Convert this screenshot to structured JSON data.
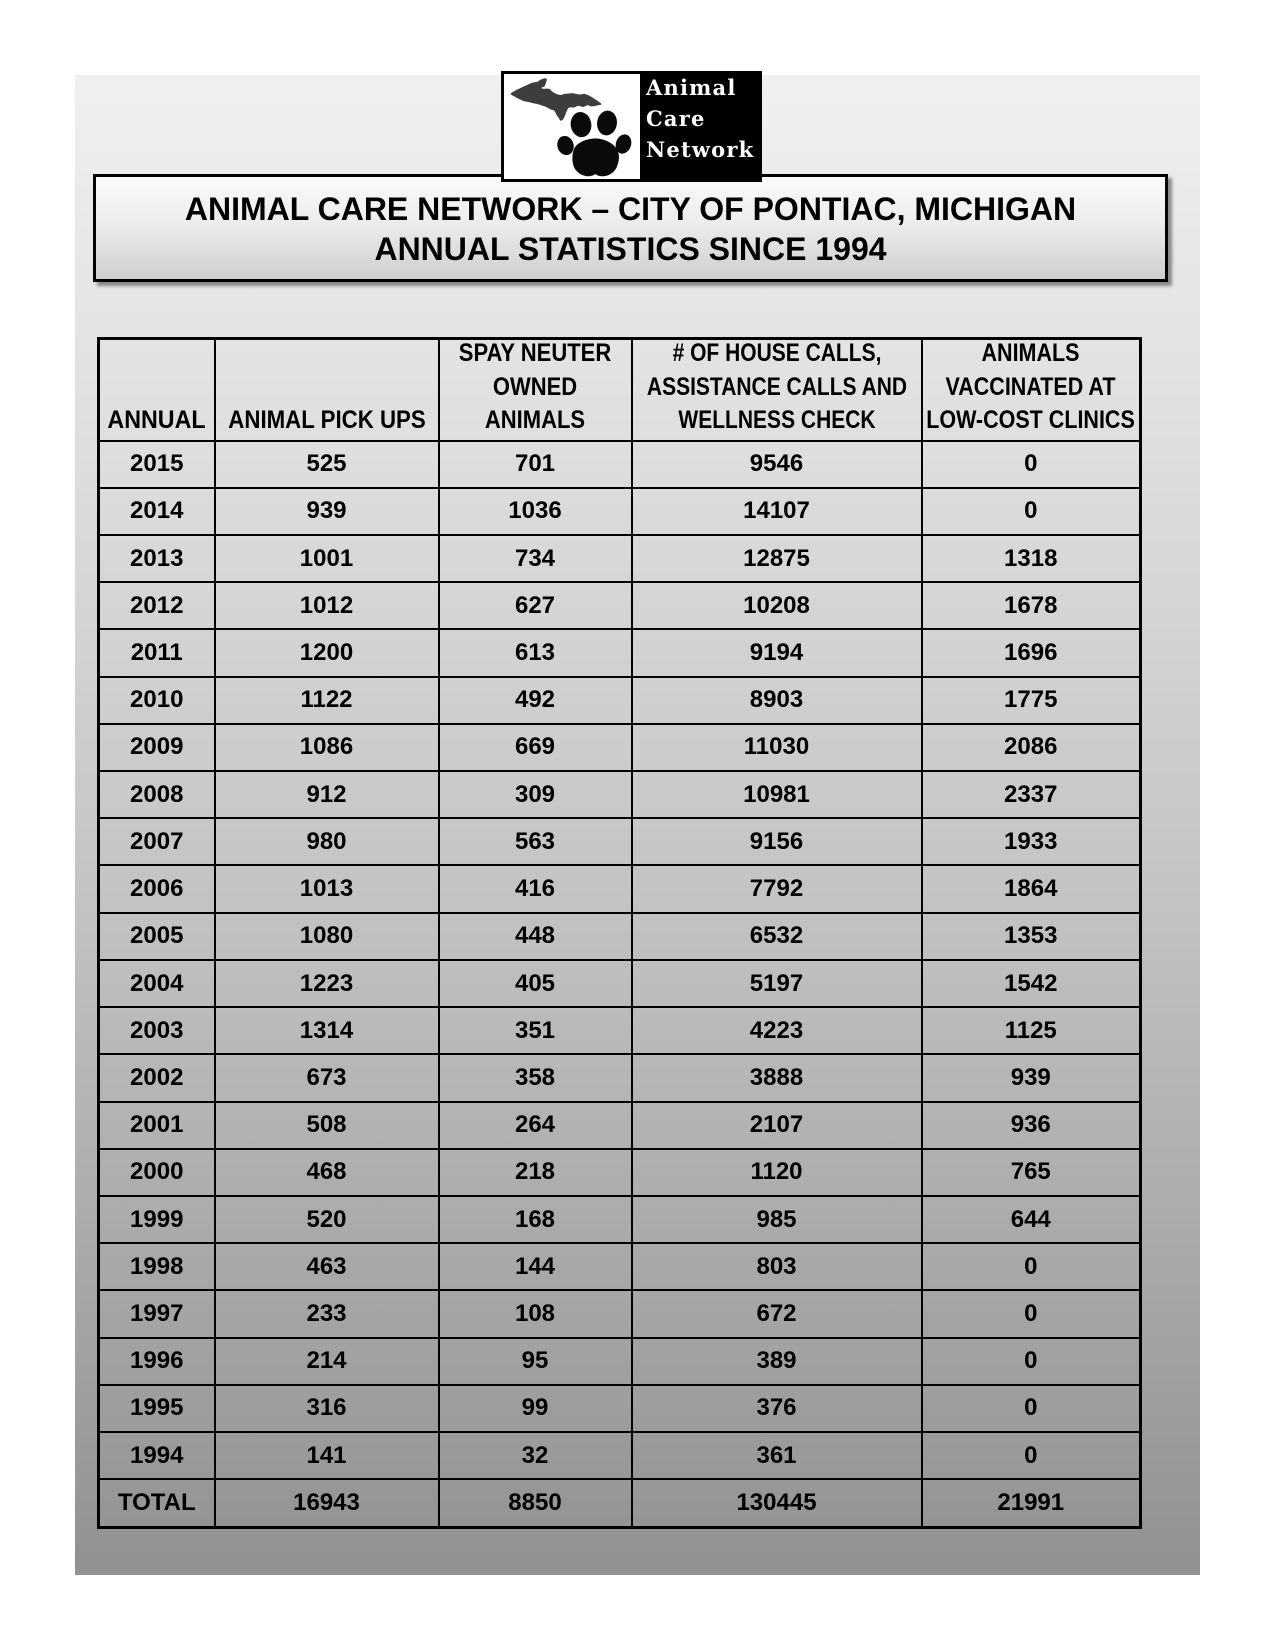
{
  "logo": {
    "art": {
      "upper_peninsula_icon": "michigan-upper-peninsula-silhouette",
      "paw_icon": "paw-print",
      "silhouette_color": "#3d3d3d",
      "paw_color": "#0a0a0a"
    },
    "text": "Animal\nCare\nNetwork"
  },
  "title": {
    "line1": "ANIMAL CARE NETWORK – CITY OF PONTIAC, MICHIGAN",
    "line2": "ANNUAL STATISTICS SINCE 1994"
  },
  "table": {
    "headers": [
      "ANNUAL",
      "ANIMAL PICK UPS",
      "SPAY NEUTER\nOWNED\nANIMALS",
      "# OF HOUSE CALLS,\nASSISTANCE CALLS AND\nWELLNESS CHECK",
      "ANIMALS\nVACCINATED AT\nLOW-COST CLINICS"
    ],
    "rows": [
      [
        "2015",
        "525",
        "701",
        "9546",
        "0"
      ],
      [
        "2014",
        "939",
        "1036",
        "14107",
        "0"
      ],
      [
        "2013",
        "1001",
        "734",
        "12875",
        "1318"
      ],
      [
        "2012",
        "1012",
        "627",
        "10208",
        "1678"
      ],
      [
        "2011",
        "1200",
        "613",
        "9194",
        "1696"
      ],
      [
        "2010",
        "1122",
        "492",
        "8903",
        "1775"
      ],
      [
        "2009",
        "1086",
        "669",
        "11030",
        "2086"
      ],
      [
        "2008",
        "912",
        "309",
        "10981",
        "2337"
      ],
      [
        "2007",
        "980",
        "563",
        "9156",
        "1933"
      ],
      [
        "2006",
        "1013",
        "416",
        "7792",
        "1864"
      ],
      [
        "2005",
        "1080",
        "448",
        "6532",
        "1353"
      ],
      [
        "2004",
        "1223",
        "405",
        "5197",
        "1542"
      ],
      [
        "2003",
        "1314",
        "351",
        "4223",
        "1125"
      ],
      [
        "2002",
        "673",
        "358",
        "3888",
        "939"
      ],
      [
        "2001",
        "508",
        "264",
        "2107",
        "936"
      ],
      [
        "2000",
        "468",
        "218",
        "1120",
        "765"
      ],
      [
        "1999",
        "520",
        "168",
        "985",
        "644"
      ],
      [
        "1998",
        "463",
        "144",
        "803",
        "0"
      ],
      [
        "1997",
        "233",
        "108",
        "672",
        "0"
      ],
      [
        "1996",
        "214",
        "95",
        "389",
        "0"
      ],
      [
        "1995",
        "316",
        "99",
        "376",
        "0"
      ],
      [
        "1994",
        "141",
        "32",
        "361",
        "0"
      ]
    ],
    "total_row": [
      "TOTAL",
      "16943",
      "8850",
      "130445",
      "21991"
    ]
  }
}
